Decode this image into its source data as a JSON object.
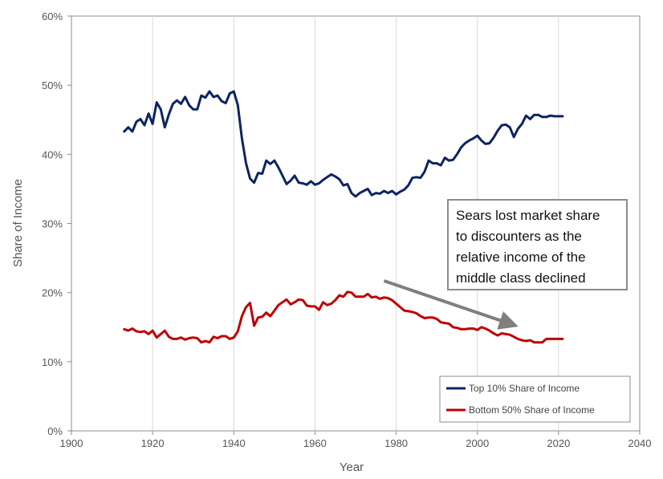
{
  "chart_data": {
    "type": "line",
    "xlabel": "Year",
    "ylabel": "Share of Income",
    "xlim": [
      1900,
      2040
    ],
    "ylim": [
      0,
      0.6
    ],
    "x_ticks": [
      "1900",
      "1920",
      "1940",
      "1960",
      "1980",
      "2000",
      "2020",
      "2040"
    ],
    "y_ticks": [
      "0%",
      "10%",
      "20%",
      "30%",
      "40%",
      "50%",
      "60%"
    ],
    "grid": "vertical",
    "legend_position": "bottom-right",
    "series": [
      {
        "name": "Top 10% Share of Income",
        "color": "#0d2461",
        "x": [
          1913,
          1914,
          1915,
          1916,
          1917,
          1918,
          1919,
          1920,
          1921,
          1922,
          1923,
          1924,
          1925,
          1926,
          1927,
          1928,
          1929,
          1930,
          1931,
          1932,
          1933,
          1934,
          1935,
          1936,
          1937,
          1938,
          1939,
          1940,
          1941,
          1942,
          1943,
          1944,
          1945,
          1946,
          1947,
          1948,
          1949,
          1950,
          1951,
          1952,
          1953,
          1954,
          1955,
          1956,
          1957,
          1958,
          1959,
          1960,
          1961,
          1962,
          1963,
          1964,
          1965,
          1966,
          1967,
          1968,
          1969,
          1970,
          1971,
          1972,
          1973,
          1974,
          1975,
          1976,
          1977,
          1978,
          1979,
          1980,
          1981,
          1982,
          1983,
          1984,
          1985,
          1986,
          1987,
          1988,
          1989,
          1990,
          1991,
          1992,
          1993,
          1994,
          1995,
          1996,
          1997,
          1998,
          1999,
          2000,
          2001,
          2002,
          2003,
          2004,
          2005,
          2006,
          2007,
          2008,
          2009,
          2010,
          2011,
          2012,
          2013,
          2014,
          2015,
          2016,
          2017,
          2018,
          2019,
          2020,
          2021
        ],
        "values": [
          0.433,
          0.439,
          0.433,
          0.447,
          0.451,
          0.442,
          0.459,
          0.444,
          0.475,
          0.465,
          0.439,
          0.458,
          0.473,
          0.478,
          0.473,
          0.483,
          0.471,
          0.465,
          0.465,
          0.485,
          0.482,
          0.491,
          0.483,
          0.485,
          0.477,
          0.474,
          0.488,
          0.491,
          0.471,
          0.423,
          0.387,
          0.365,
          0.359,
          0.373,
          0.372,
          0.391,
          0.386,
          0.391,
          0.381,
          0.369,
          0.357,
          0.362,
          0.369,
          0.359,
          0.358,
          0.356,
          0.361,
          0.356,
          0.358,
          0.363,
          0.367,
          0.371,
          0.368,
          0.364,
          0.355,
          0.357,
          0.344,
          0.339,
          0.344,
          0.347,
          0.35,
          0.341,
          0.344,
          0.343,
          0.347,
          0.344,
          0.347,
          0.342,
          0.346,
          0.349,
          0.355,
          0.366,
          0.367,
          0.366,
          0.375,
          0.391,
          0.387,
          0.387,
          0.384,
          0.395,
          0.391,
          0.392,
          0.4,
          0.41,
          0.416,
          0.42,
          0.423,
          0.427,
          0.42,
          0.415,
          0.416,
          0.424,
          0.434,
          0.442,
          0.443,
          0.439,
          0.425,
          0.437,
          0.444,
          0.456,
          0.451,
          0.457,
          0.457,
          0.454,
          0.454,
          0.456,
          0.455,
          0.455,
          0.455
        ]
      },
      {
        "name": "Bottom 50% Share of Income",
        "color": "#c00000",
        "x": [
          1913,
          1914,
          1915,
          1916,
          1917,
          1918,
          1919,
          1920,
          1921,
          1922,
          1923,
          1924,
          1925,
          1926,
          1927,
          1928,
          1929,
          1930,
          1931,
          1932,
          1933,
          1934,
          1935,
          1936,
          1937,
          1938,
          1939,
          1940,
          1941,
          1942,
          1943,
          1944,
          1945,
          1946,
          1947,
          1948,
          1949,
          1950,
          1951,
          1952,
          1953,
          1954,
          1955,
          1956,
          1957,
          1958,
          1959,
          1960,
          1961,
          1962,
          1963,
          1964,
          1965,
          1966,
          1967,
          1968,
          1969,
          1970,
          1971,
          1972,
          1973,
          1974,
          1975,
          1976,
          1977,
          1978,
          1979,
          1980,
          1981,
          1982,
          1983,
          1984,
          1985,
          1986,
          1987,
          1988,
          1989,
          1990,
          1991,
          1992,
          1993,
          1994,
          1995,
          1996,
          1997,
          1998,
          1999,
          2000,
          2001,
          2002,
          2003,
          2004,
          2005,
          2006,
          2007,
          2008,
          2009,
          2010,
          2011,
          2012,
          2013,
          2014,
          2015,
          2016,
          2017,
          2018,
          2019,
          2020,
          2021
        ],
        "values": [
          0.147,
          0.145,
          0.148,
          0.144,
          0.143,
          0.144,
          0.14,
          0.145,
          0.135,
          0.14,
          0.145,
          0.136,
          0.133,
          0.133,
          0.135,
          0.132,
          0.134,
          0.135,
          0.134,
          0.128,
          0.13,
          0.128,
          0.136,
          0.134,
          0.137,
          0.137,
          0.133,
          0.135,
          0.144,
          0.166,
          0.179,
          0.185,
          0.152,
          0.164,
          0.165,
          0.171,
          0.166,
          0.174,
          0.182,
          0.186,
          0.19,
          0.183,
          0.186,
          0.19,
          0.189,
          0.181,
          0.18,
          0.18,
          0.175,
          0.186,
          0.182,
          0.184,
          0.189,
          0.196,
          0.194,
          0.201,
          0.2,
          0.194,
          0.194,
          0.194,
          0.198,
          0.193,
          0.194,
          0.191,
          0.193,
          0.192,
          0.189,
          0.184,
          0.179,
          0.174,
          0.173,
          0.172,
          0.17,
          0.166,
          0.163,
          0.164,
          0.164,
          0.162,
          0.157,
          0.156,
          0.155,
          0.15,
          0.149,
          0.147,
          0.147,
          0.148,
          0.148,
          0.146,
          0.15,
          0.148,
          0.145,
          0.141,
          0.138,
          0.141,
          0.14,
          0.139,
          0.136,
          0.133,
          0.131,
          0.13,
          0.131,
          0.128,
          0.128,
          0.128,
          0.133,
          0.133,
          0.133,
          0.133,
          0.133
        ]
      }
    ],
    "annotation": {
      "lines": [
        "Sears lost market share",
        "to discounters as the",
        "relative income of the",
        "middle class declined"
      ],
      "arrow_from": {
        "x": 1977,
        "y": 0.217
      },
      "arrow_to": {
        "x": 2008,
        "y": 0.155
      },
      "arrow_color": "#7f7f7f"
    }
  }
}
